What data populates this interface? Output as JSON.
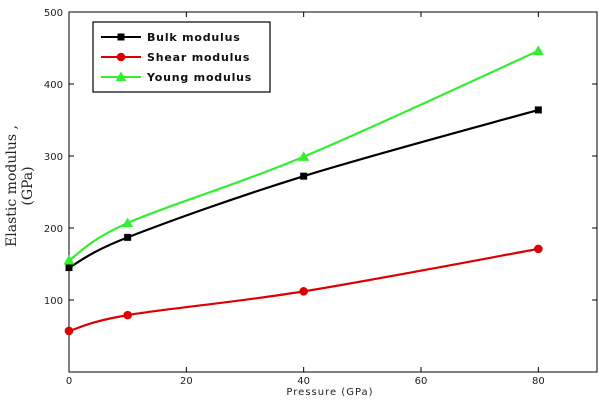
{
  "chart_data": {
    "type": "line",
    "xlabel": "Pressure (GPa)",
    "ylabel": "Elastic modulus , (GPa)",
    "xlim": [
      0,
      90
    ],
    "ylim": [
      0,
      500
    ],
    "xticks": [
      0,
      20,
      40,
      60,
      80
    ],
    "yticks": [
      100,
      200,
      300,
      400,
      500
    ],
    "legend_position": "top-left",
    "series": [
      {
        "name": "Bulk modulus",
        "color": "#000000",
        "marker": "square",
        "x": [
          0,
          10,
          40,
          80
        ],
        "y": [
          145,
          187,
          272,
          364
        ]
      },
      {
        "name": "Shear modulus",
        "color": "#dd0000",
        "marker": "circle",
        "x": [
          0,
          10,
          40,
          80
        ],
        "y": [
          57,
          79,
          112,
          171
        ]
      },
      {
        "name": "Young modulus",
        "color": "#33ee33",
        "marker": "triangle",
        "x": [
          0,
          10,
          40,
          80
        ],
        "y": [
          155,
          207,
          299,
          446
        ]
      }
    ]
  }
}
